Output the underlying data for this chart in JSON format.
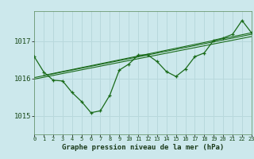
{
  "title": "Graphe pression niveau de la mer (hPa)",
  "bg_color": "#cce8ec",
  "label_bg_color": "#cce8ec",
  "grid_color": "#b8d8dc",
  "line_color": "#1a6b1a",
  "xlim": [
    0,
    23
  ],
  "ylim": [
    1014.5,
    1017.8
  ],
  "yticks": [
    1015,
    1016,
    1017
  ],
  "xticks": [
    0,
    1,
    2,
    3,
    4,
    5,
    6,
    7,
    8,
    9,
    10,
    11,
    12,
    13,
    14,
    15,
    16,
    17,
    18,
    19,
    20,
    21,
    22,
    23
  ],
  "main_series": [
    [
      0,
      1016.58
    ],
    [
      1,
      1016.17
    ],
    [
      2,
      1015.95
    ],
    [
      3,
      1015.93
    ],
    [
      4,
      1015.62
    ],
    [
      5,
      1015.38
    ],
    [
      6,
      1015.08
    ],
    [
      7,
      1015.13
    ],
    [
      8,
      1015.55
    ],
    [
      9,
      1016.22
    ],
    [
      10,
      1016.38
    ],
    [
      11,
      1016.62
    ],
    [
      12,
      1016.63
    ],
    [
      13,
      1016.45
    ],
    [
      14,
      1016.18
    ],
    [
      15,
      1016.05
    ],
    [
      16,
      1016.25
    ],
    [
      17,
      1016.58
    ],
    [
      18,
      1016.68
    ],
    [
      19,
      1017.02
    ],
    [
      20,
      1017.08
    ],
    [
      21,
      1017.18
    ],
    [
      22,
      1017.55
    ],
    [
      23,
      1017.22
    ]
  ],
  "trend_series1": [
    [
      0,
      1015.98
    ],
    [
      23,
      1017.12
    ]
  ],
  "trend_series2": [
    [
      0,
      1016.02
    ],
    [
      23,
      1017.18
    ]
  ],
  "trend_series3": [
    [
      1,
      1016.08
    ],
    [
      23,
      1017.22
    ]
  ]
}
